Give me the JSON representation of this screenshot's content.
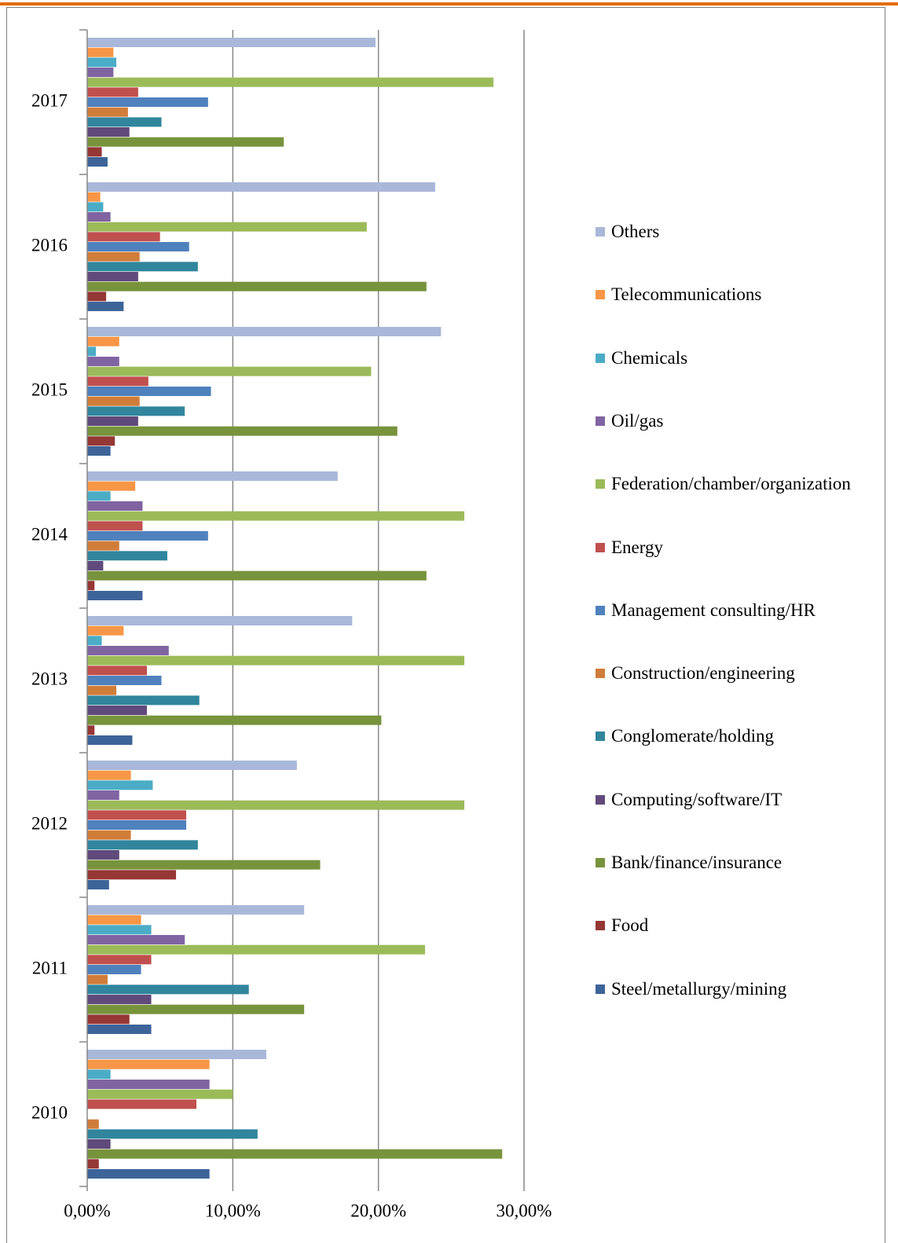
{
  "chart_data": {
    "type": "barh",
    "categories": [
      "2017",
      "2016",
      "2015",
      "2014",
      "2013",
      "2012",
      "2011",
      "2010"
    ],
    "xlim": [
      0,
      30
    ],
    "xticks": [
      {
        "value": 0,
        "label": "0,00%"
      },
      {
        "value": 10,
        "label": "10,00%"
      },
      {
        "value": 20,
        "label": "20,00%"
      },
      {
        "value": 30,
        "label": "30,00%"
      }
    ],
    "grid": true,
    "legend": "right",
    "series": [
      {
        "name": "Others",
        "color": "#a9b8d9",
        "values": [
          19.8,
          23.9,
          24.3,
          17.2,
          18.2,
          14.4,
          14.9,
          12.3
        ]
      },
      {
        "name": "Telecommunications",
        "color": "#f79646",
        "values": [
          1.8,
          0.9,
          2.2,
          3.3,
          2.5,
          3.0,
          3.7,
          8.4
        ]
      },
      {
        "name": "Chemicals",
        "color": "#4bacc6",
        "values": [
          2.0,
          1.1,
          0.6,
          1.6,
          1.0,
          4.5,
          4.4,
          1.6
        ]
      },
      {
        "name": "Oil/gas",
        "color": "#8064a2",
        "values": [
          1.8,
          1.6,
          2.2,
          3.8,
          5.6,
          2.2,
          6.7,
          8.4
        ]
      },
      {
        "name": "Federation/chamber/organization",
        "color": "#9bbb59",
        "values": [
          27.9,
          19.2,
          19.5,
          25.9,
          25.9,
          25.9,
          23.2,
          10.0
        ]
      },
      {
        "name": "Energy",
        "color": "#c0504d",
        "values": [
          3.5,
          5.0,
          4.2,
          3.8,
          4.1,
          6.8,
          4.4,
          7.5
        ]
      },
      {
        "name": "Management consulting/HR",
        "color": "#4f81bd",
        "values": [
          8.3,
          7.0,
          8.5,
          8.3,
          5.1,
          6.8,
          3.7,
          0
        ]
      },
      {
        "name": "Construction/engineering",
        "color": "#d07d3a",
        "values": [
          2.8,
          3.6,
          3.6,
          2.2,
          2.0,
          3.0,
          1.4,
          0.8
        ]
      },
      {
        "name": "Conglomerate/holding",
        "color": "#31859c",
        "values": [
          5.1,
          7.6,
          6.7,
          5.5,
          7.7,
          7.6,
          11.1,
          11.7
        ]
      },
      {
        "name": "Computing/software/IT",
        "color": "#604a7b",
        "values": [
          2.9,
          3.5,
          3.5,
          1.1,
          4.1,
          2.2,
          4.4,
          1.6
        ]
      },
      {
        "name": "Bank/finance/insurance",
        "color": "#77933c",
        "values": [
          13.5,
          23.3,
          21.3,
          23.3,
          20.2,
          16.0,
          14.9,
          28.5
        ]
      },
      {
        "name": "Food",
        "color": "#953735",
        "values": [
          1.0,
          1.3,
          1.9,
          0.5,
          0.5,
          6.1,
          2.9,
          0.8
        ]
      },
      {
        "name": "Steel/metallurgy/mining",
        "color": "#3d6499",
        "values": [
          1.4,
          2.5,
          1.6,
          3.8,
          3.1,
          1.5,
          4.4,
          8.4
        ]
      }
    ]
  }
}
